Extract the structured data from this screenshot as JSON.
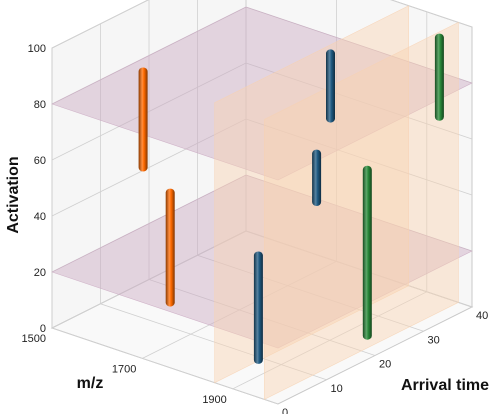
{
  "chart_data": {
    "type": "3d-bar",
    "xlabel": "m/z",
    "ylabel": "Arrival time",
    "zlabel": "Activation",
    "x_ticks": [
      "1500",
      "1700",
      "1900"
    ],
    "y_ticks": [
      "0",
      "10",
      "20",
      "30",
      "40"
    ],
    "z_ticks": [
      "0",
      "20",
      "40",
      "60",
      "80",
      "100"
    ],
    "xlim": [
      1500,
      2000
    ],
    "ylim": [
      0,
      40
    ],
    "zlim": [
      0,
      100
    ],
    "grid": true,
    "planes": [
      {
        "axis": "z",
        "value": 20,
        "color": "#c9a8c0"
      },
      {
        "axis": "z",
        "value": 80,
        "color": "#c9a8c0"
      },
      {
        "axis": "x",
        "value": 1860,
        "color": "#f8d2b2"
      },
      {
        "axis": "x",
        "value": 1970,
        "color": "#f8d2b2"
      }
    ],
    "series": [
      {
        "color": "#ff6a00",
        "bars": [
          {
            "mz": 1680,
            "time": 2,
            "z_low": 65,
            "z_high": 100
          },
          {
            "mz": 1740,
            "time": 2,
            "z_low": 20,
            "z_high": 60
          }
        ]
      },
      {
        "color": "#1f5a82",
        "bars": [
          {
            "mz": 1860,
            "time": 9,
            "z_low": 0,
            "z_high": 38
          },
          {
            "mz": 1860,
            "time": 21,
            "z_low": 46,
            "z_high": 64
          },
          {
            "mz": 1880,
            "time": 22,
            "z_low": 76,
            "z_high": 100
          }
        ]
      },
      {
        "color": "#2a8a3a",
        "bars": [
          {
            "mz": 1940,
            "time": 24,
            "z_low": 0,
            "z_high": 60
          },
          {
            "mz": 1960,
            "time": 37,
            "z_low": 68,
            "z_high": 97
          }
        ]
      }
    ]
  }
}
